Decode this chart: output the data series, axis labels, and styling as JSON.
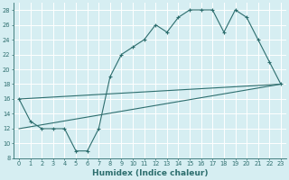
{
  "line1_x": [
    0,
    1,
    2,
    3,
    4,
    5,
    6,
    7,
    8,
    9,
    10,
    11,
    12,
    13,
    14,
    15,
    16,
    17,
    18,
    19,
    20,
    21,
    22,
    23
  ],
  "line1_y": [
    16,
    13,
    12,
    12,
    12,
    9,
    9,
    12,
    19,
    22,
    23,
    24,
    26,
    25,
    27,
    28,
    28,
    28,
    25,
    28,
    27,
    24,
    21,
    18
  ],
  "line2_x": [
    0,
    23
  ],
  "line2_y": [
    16,
    18
  ],
  "line3_x": [
    0,
    23
  ],
  "line3_y": [
    12,
    18
  ],
  "color": "#2d6e6e",
  "bg_color": "#d6eef2",
  "grid_color": "#ffffff",
  "xlabel": "Humidex (Indice chaleur)",
  "xlim": [
    -0.5,
    23.5
  ],
  "ylim": [
    8,
    29
  ],
  "yticks": [
    8,
    10,
    12,
    14,
    16,
    18,
    20,
    22,
    24,
    26,
    28
  ],
  "xticks": [
    0,
    1,
    2,
    3,
    4,
    5,
    6,
    7,
    8,
    9,
    10,
    11,
    12,
    13,
    14,
    15,
    16,
    17,
    18,
    19,
    20,
    21,
    22,
    23
  ],
  "tick_fontsize": 4.8,
  "xlabel_fontsize": 6.5
}
